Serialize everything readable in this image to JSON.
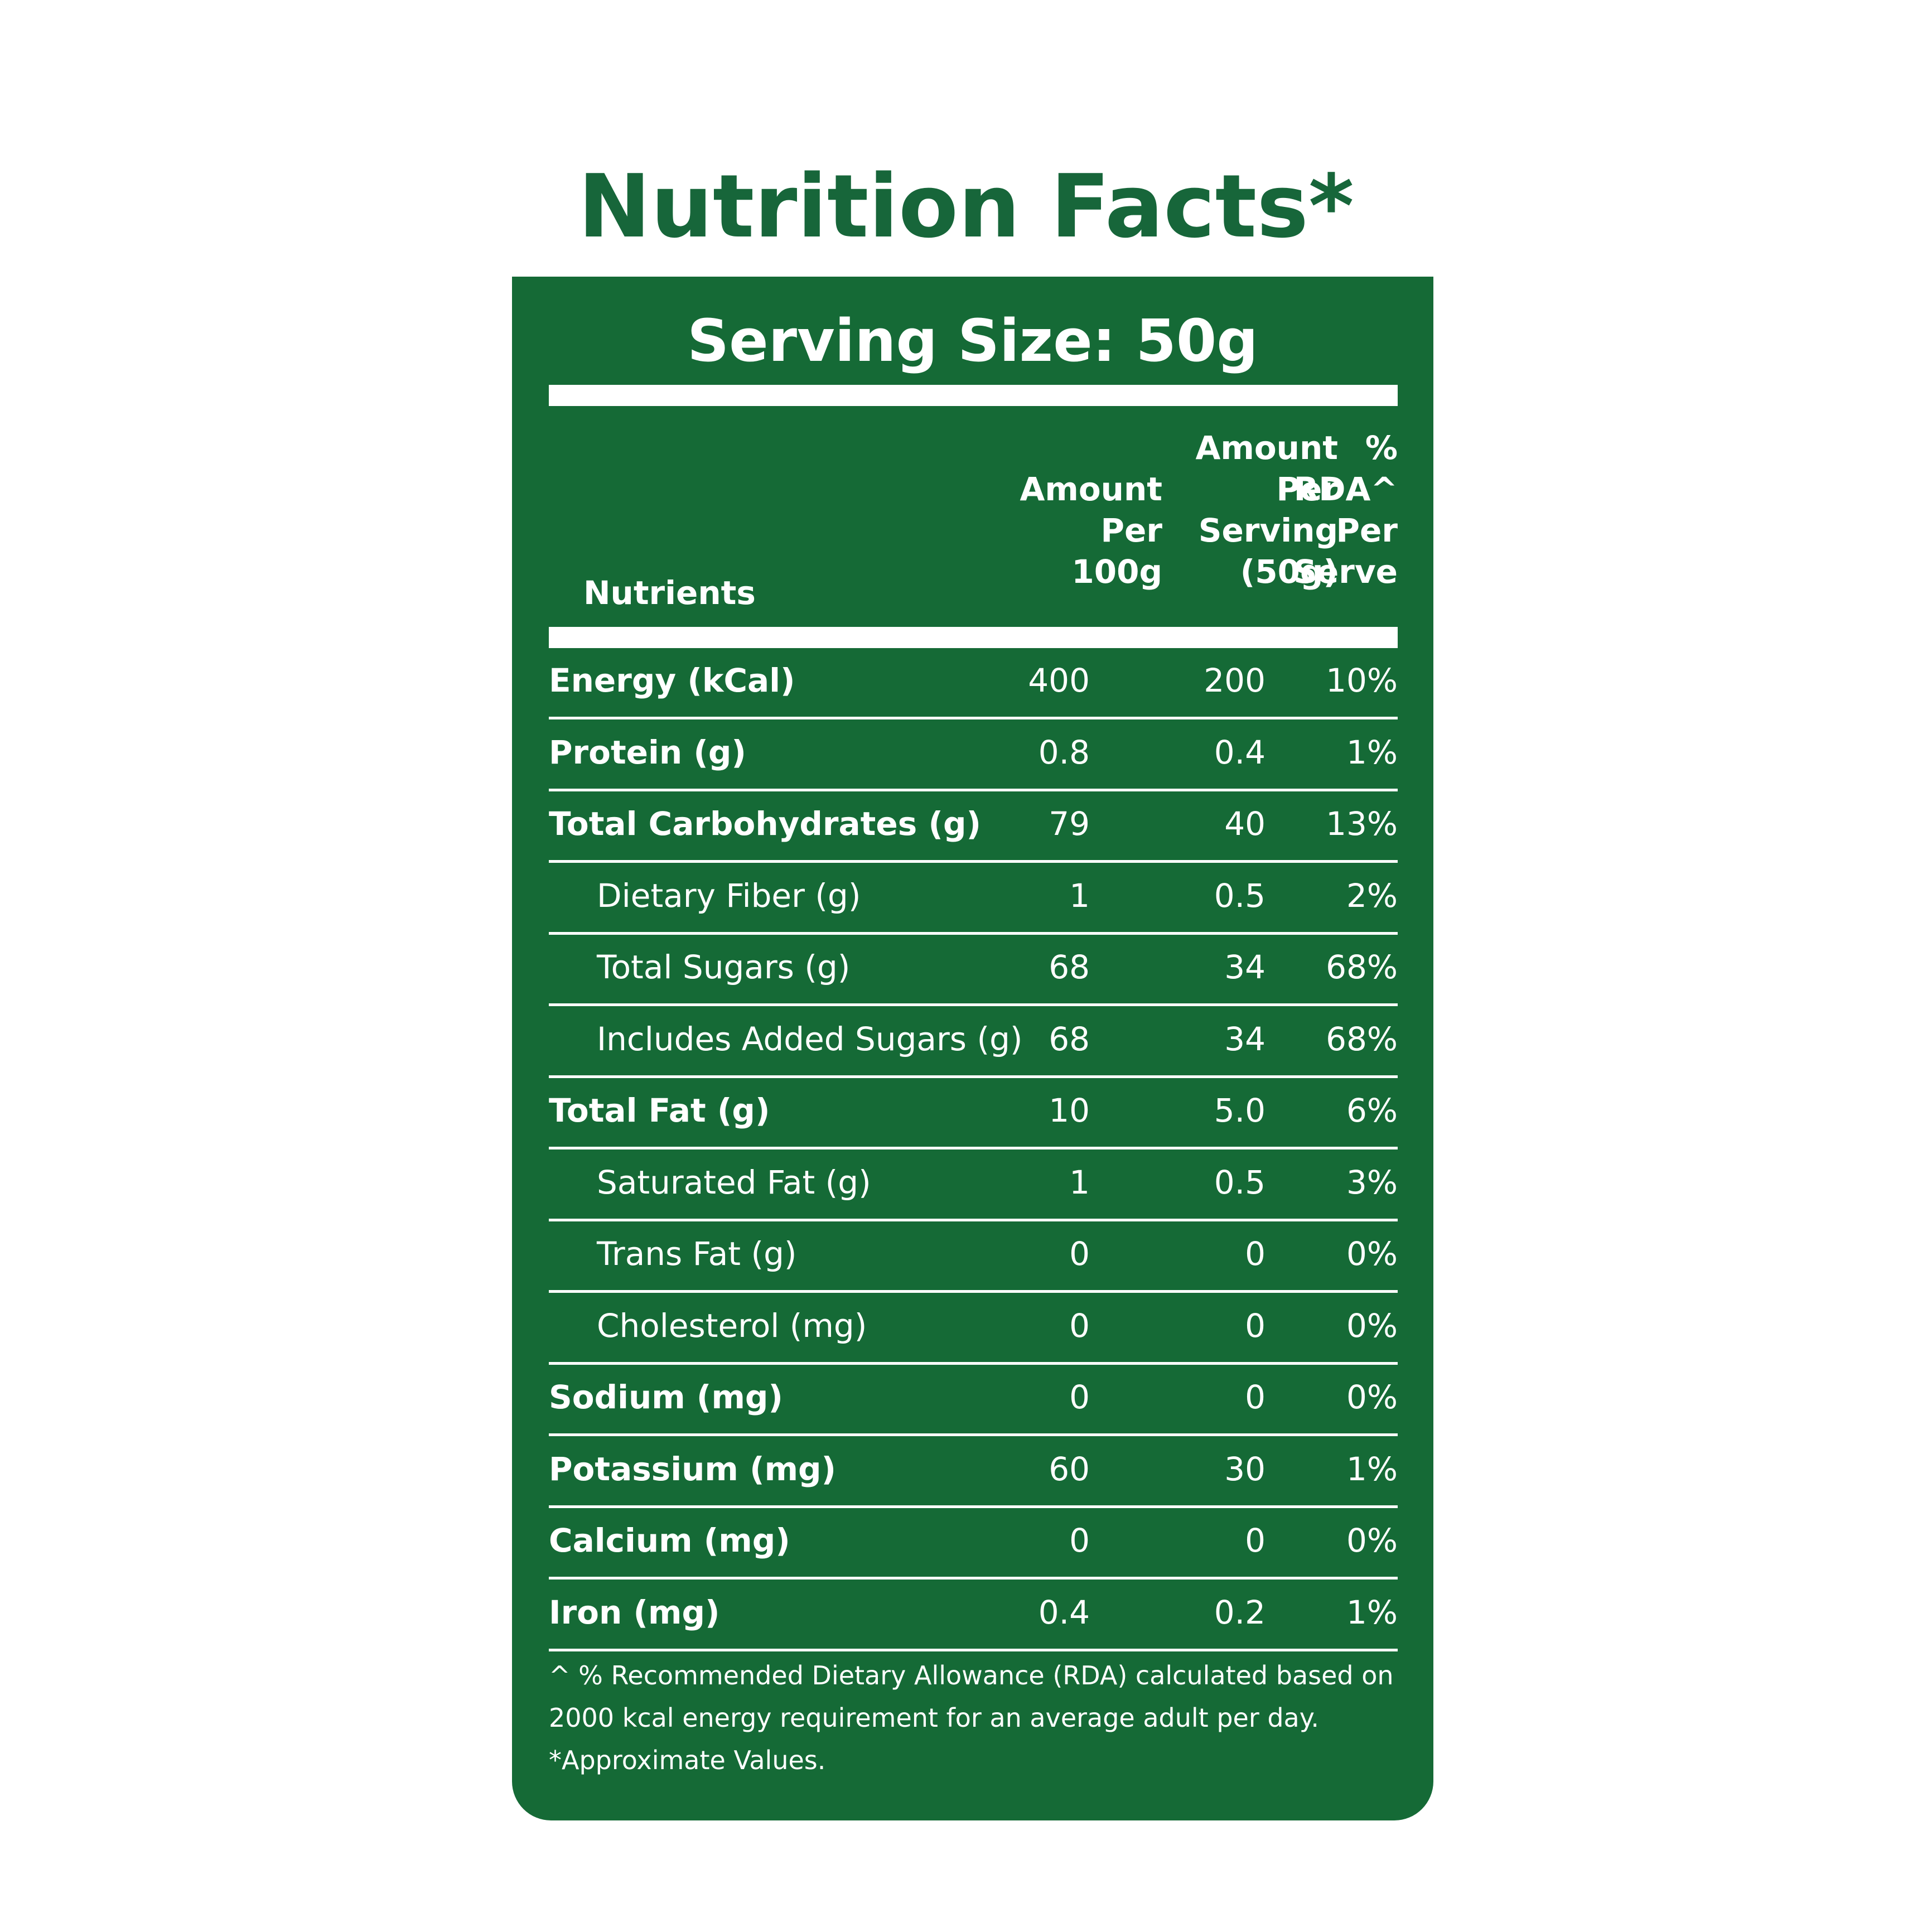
{
  "title": "Nutrition Facts*",
  "serving_size": "Serving Size: 50g",
  "headers": {
    "nutrients": "Nutrients",
    "per_100g": [
      "Amount",
      "Per",
      "100g"
    ],
    "per_serving": [
      "Amount",
      "Per",
      "Serving",
      "(50g)"
    ],
    "rda": [
      "%",
      "RDA^",
      "Per",
      "Serve"
    ]
  },
  "rows": [
    {
      "name": "Energy (kCal)",
      "per_100g": "400",
      "per_serving": "200",
      "rda": "10%",
      "bold": true
    },
    {
      "name": "Protein (g)",
      "per_100g": "0.8",
      "per_serving": "0.4",
      "rda": "1%",
      "bold": true
    },
    {
      "name": "Total Carbohydrates (g)",
      "per_100g": "79",
      "per_serving": "40",
      "rda": "13%",
      "bold": true
    },
    {
      "name": "Dietary Fiber (g)",
      "per_100g": "1",
      "per_serving": "0.5",
      "rda": "2%",
      "bold": false
    },
    {
      "name": "Total Sugars (g)",
      "per_100g": "68",
      "per_serving": "34",
      "rda": "68%",
      "bold": false
    },
    {
      "name": "Includes Added Sugars (g)",
      "per_100g": "68",
      "per_serving": "34",
      "rda": "68%",
      "bold": false
    },
    {
      "name": "Total Fat (g)",
      "per_100g": "10",
      "per_serving": "5.0",
      "rda": "6%",
      "bold": true
    },
    {
      "name": "Saturated Fat (g)",
      "per_100g": "1",
      "per_serving": "0.5",
      "rda": "3%",
      "bold": false
    },
    {
      "name": "Trans Fat (g)",
      "per_100g": "0",
      "per_serving": "0",
      "rda": "0%",
      "bold": false
    },
    {
      "name": "Cholesterol (mg)",
      "per_100g": "0",
      "per_serving": "0",
      "rda": "0%",
      "bold": false
    },
    {
      "name": "Sodium (mg)",
      "per_100g": "0",
      "per_serving": "0",
      "rda": "0%",
      "bold": true
    },
    {
      "name": "Potassium  (mg)",
      "per_100g": "60",
      "per_serving": "30",
      "rda": "1%",
      "bold": true
    },
    {
      "name": "Calcium (mg)",
      "per_100g": "0",
      "per_serving": "0",
      "rda": "0%",
      "bold": true
    },
    {
      "name": "Iron (mg)",
      "per_100g": "0.4",
      "per_serving": "0.2",
      "rda": "1%",
      "bold": true
    }
  ],
  "footnotes": [
    "^ % Recommended Dietary Allowance (RDA) calculated based on",
    "2000 kcal energy requirement for an average adult per day.",
    "*Approximate Values."
  ],
  "colors": {
    "brand_green": "#156a36",
    "title_green": "#17663a",
    "text_on_green": "#ffffff"
  }
}
